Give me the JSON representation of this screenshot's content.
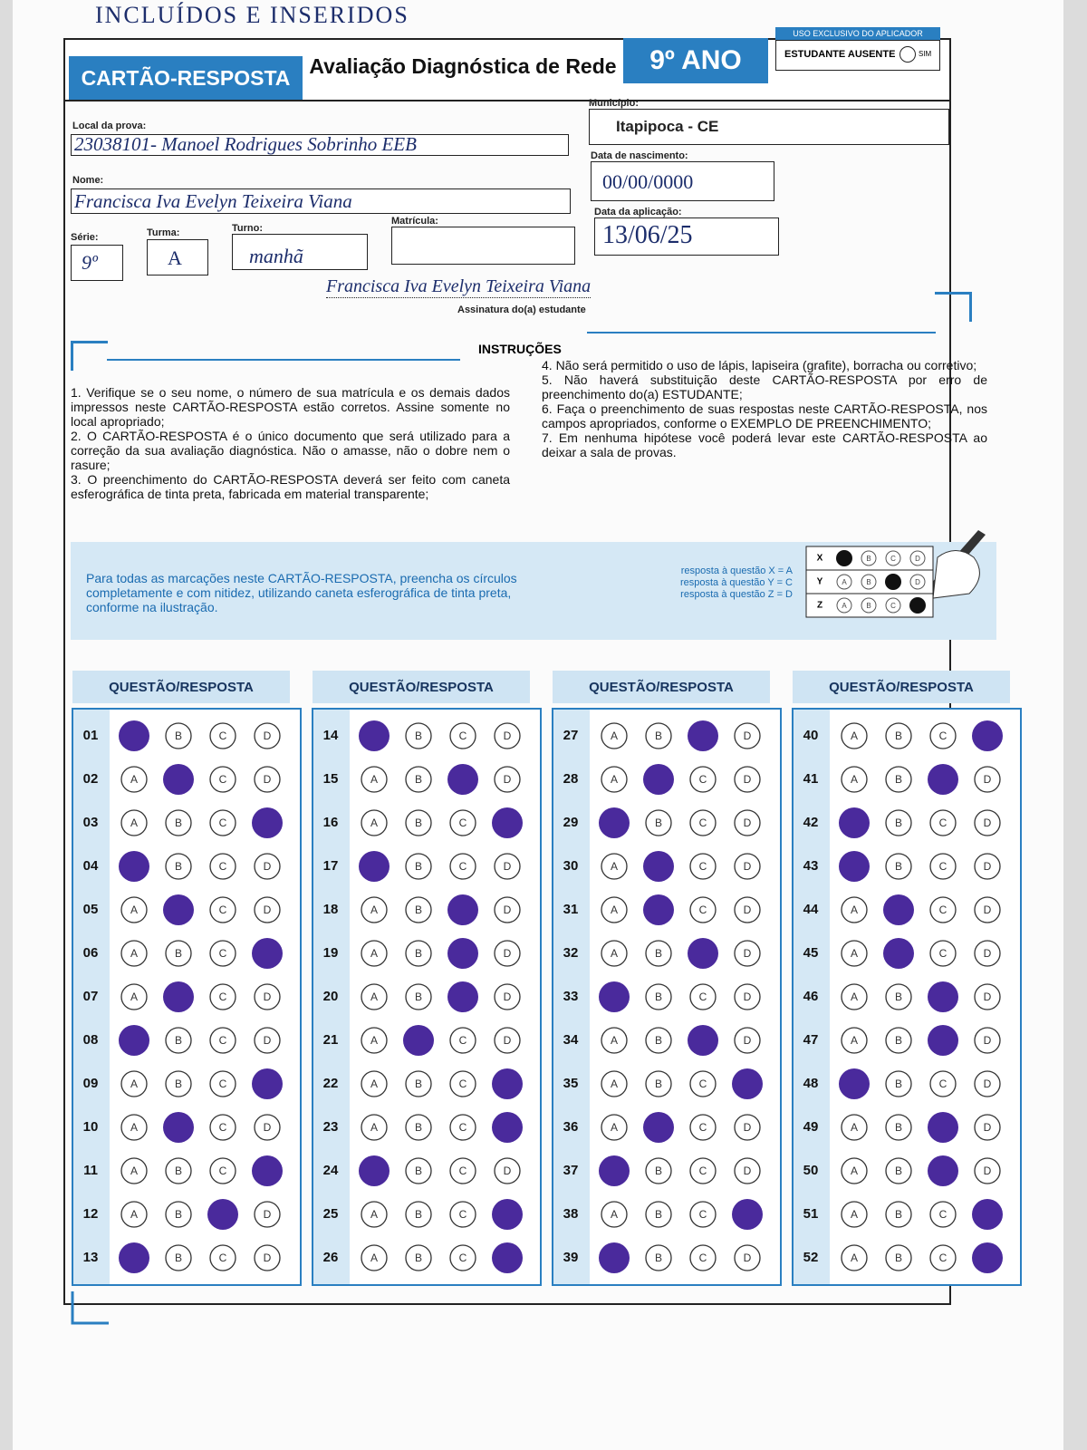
{
  "note": "INCLUÍDOS E INSERIDOS",
  "header": {
    "title": "CARTÃO-RESPOSTA",
    "subtitle": "Avaliação Diagnóstica de Rede",
    "grade": "9º ANO",
    "applicator": {
      "label": "USO EXCLUSIVO DO APLICADOR",
      "absent": "ESTUDANTE AUSENTE",
      "yes": "SIM"
    }
  },
  "fields": {
    "local": {
      "label": "Local da prova:",
      "value": "23038101- Manoel Rodrigues Sobrinho EEB"
    },
    "nome": {
      "label": "Nome:",
      "value": "Francisca Iva Evelyn Teixeira Viana"
    },
    "serie": {
      "label": "Série:",
      "value": "9º"
    },
    "turma": {
      "label": "Turma:",
      "value": "A"
    },
    "turno": {
      "label": "Turno:",
      "value": "manhã"
    },
    "matricula": {
      "label": "Matrícula:"
    },
    "municipio": {
      "label": "Município:",
      "value": "Itapipoca - CE"
    },
    "nascimento": {
      "label": "Data de nascimento:",
      "value": "00/00/0000"
    },
    "aplicacao": {
      "label": "Data da aplicação:",
      "value": "13/06/25"
    }
  },
  "signature": {
    "value": "Francisca Iva Evelyn Teixeira Viana",
    "label": "Assinatura do(a) estudante"
  },
  "instructions": {
    "title": "INSTRUÇÕES",
    "left": [
      "1. Verifique se o seu nome, o número de sua matrícula e os demais dados impressos neste CARTÃO-RESPOSTA estão corretos. Assine somente no local apropriado;",
      "2. O CARTÃO-RESPOSTA é o único documento que será utilizado para a correção da sua avaliação diagnóstica. Não o amasse, não o dobre nem o rasure;",
      "3. O preenchimento do CARTÃO-RESPOSTA deverá ser feito com caneta esferográfica de tinta preta, fabricada em material transparente;"
    ],
    "right": [
      "4. Não será permitido o uso de lápis, lapiseira (grafite), borracha ou corretivo;",
      "5. Não haverá substituição deste CARTÃO-RESPOSTA por erro de preenchimento do(a) ESTUDANTE;",
      "6. Faça o preenchimento de suas respostas neste CARTÃO-RESPOSTA, nos campos apropriados, conforme o EXEMPLO DE PREENCHIMENTO;",
      "7. Em nenhuma hipótese você poderá levar este CARTÃO-RESPOSTA ao deixar a sala de provas."
    ]
  },
  "example": {
    "text": "Para todas as marcações neste CARTÃO-RESPOSTA, preencha os círculos completamente e com nitidez, utilizando caneta esferográfica de tinta preta, conforme na ilustração.",
    "legend": [
      "resposta à questão X = A",
      "resposta à questão Y = C",
      "resposta à questão Z = D"
    ],
    "rows": [
      {
        "label": "X",
        "marked": "A"
      },
      {
        "label": "Y",
        "marked": "C"
      },
      {
        "label": "Z",
        "marked": "D"
      }
    ]
  },
  "answers": {
    "header": "QUESTÃO/RESPOSTA",
    "options": [
      "A",
      "B",
      "C",
      "D"
    ],
    "columns": [
      [
        {
          "number": "01",
          "marked": "A"
        },
        {
          "number": "02",
          "marked": "B"
        },
        {
          "number": "03",
          "marked": "D"
        },
        {
          "number": "04",
          "marked": "A"
        },
        {
          "number": "05",
          "marked": "B"
        },
        {
          "number": "06",
          "marked": "D"
        },
        {
          "number": "07",
          "marked": "B"
        },
        {
          "number": "08",
          "marked": "A"
        },
        {
          "number": "09",
          "marked": "D"
        },
        {
          "number": "10",
          "marked": "B"
        },
        {
          "number": "11",
          "marked": "D"
        },
        {
          "number": "12",
          "marked": "C"
        },
        {
          "number": "13",
          "marked": "A"
        }
      ],
      [
        {
          "number": "14",
          "marked": "A"
        },
        {
          "number": "15",
          "marked": "C"
        },
        {
          "number": "16",
          "marked": "D"
        },
        {
          "number": "17",
          "marked": "A"
        },
        {
          "number": "18",
          "marked": "C"
        },
        {
          "number": "19",
          "marked": "C"
        },
        {
          "number": "20",
          "marked": "C"
        },
        {
          "number": "21",
          "marked": "B"
        },
        {
          "number": "22",
          "marked": "D"
        },
        {
          "number": "23",
          "marked": "D"
        },
        {
          "number": "24",
          "marked": "A"
        },
        {
          "number": "25",
          "marked": "D"
        },
        {
          "number": "26",
          "marked": "D"
        }
      ],
      [
        {
          "number": "27",
          "marked": "C"
        },
        {
          "number": "28",
          "marked": "B"
        },
        {
          "number": "29",
          "marked": "A"
        },
        {
          "number": "30",
          "marked": "B"
        },
        {
          "number": "31",
          "marked": "B"
        },
        {
          "number": "32",
          "marked": "C"
        },
        {
          "number": "33",
          "marked": "A"
        },
        {
          "number": "34",
          "marked": "C"
        },
        {
          "number": "35",
          "marked": "D"
        },
        {
          "number": "36",
          "marked": "B"
        },
        {
          "number": "37",
          "marked": "A"
        },
        {
          "number": "38",
          "marked": "D"
        },
        {
          "number": "39",
          "marked": "A"
        }
      ],
      [
        {
          "number": "40",
          "marked": "D"
        },
        {
          "number": "41",
          "marked": "C"
        },
        {
          "number": "42",
          "marked": "A"
        },
        {
          "number": "43",
          "marked": "A"
        },
        {
          "number": "44",
          "marked": "B"
        },
        {
          "number": "45",
          "marked": "B"
        },
        {
          "number": "46",
          "marked": "C"
        },
        {
          "number": "47",
          "marked": "C"
        },
        {
          "number": "48",
          "marked": "A"
        },
        {
          "number": "49",
          "marked": "C"
        },
        {
          "number": "50",
          "marked": "C"
        },
        {
          "number": "51",
          "marked": "D"
        },
        {
          "number": "52",
          "marked": "D"
        }
      ]
    ]
  }
}
